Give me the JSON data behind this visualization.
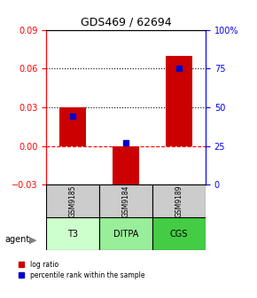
{
  "title": "GDS469 / 62694",
  "samples": [
    "GSM9185",
    "GSM9184",
    "GSM9189"
  ],
  "agents": [
    "T3",
    "DITPA",
    "CGS"
  ],
  "log_ratios": [
    0.03,
    -0.035,
    0.07
  ],
  "percentile_ranks": [
    0.44,
    0.27,
    0.75
  ],
  "bar_color": "#cc0000",
  "dot_color": "#0000cc",
  "ylim_left": [
    -0.03,
    0.09
  ],
  "ylim_right": [
    0.0,
    1.0
  ],
  "yticks_left": [
    -0.03,
    0.0,
    0.03,
    0.06,
    0.09
  ],
  "yticks_right": [
    0.0,
    0.25,
    0.5,
    0.75,
    1.0
  ],
  "ytick_labels_right": [
    "0",
    "25",
    "50",
    "75",
    "100%"
  ],
  "hline_y": [
    0.03,
    0.06
  ],
  "zero_line_y": 0.0,
  "agent_colors": [
    "#ccffcc",
    "#99ee99",
    "#44cc44"
  ],
  "sample_bg": "#cccccc",
  "bar_width": 0.5,
  "dot_size": 40
}
